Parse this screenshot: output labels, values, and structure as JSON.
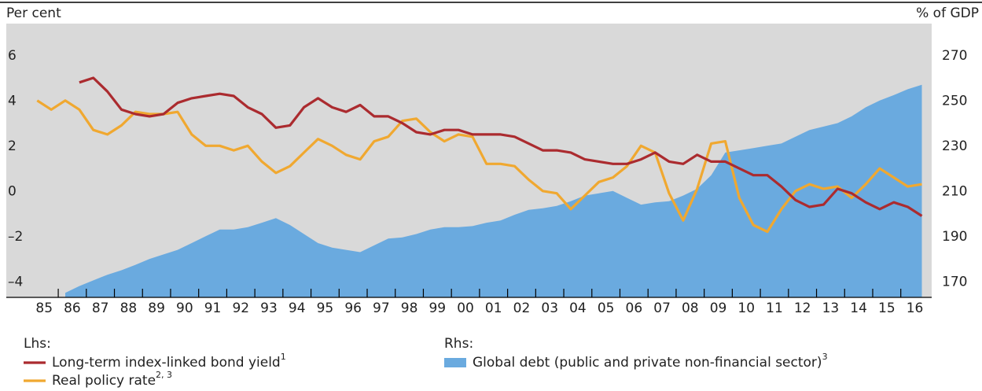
{
  "chart_data": {
    "type": "line",
    "y_label": "Per cent",
    "y2_label": "% of GDP",
    "legend": {
      "lhs_heading": "Lhs:",
      "rhs_heading": "Rhs:"
    },
    "x": [
      1985.25,
      1985.75,
      1986.25,
      1986.75,
      1987.25,
      1987.75,
      1988.25,
      1988.75,
      1989.25,
      1989.75,
      1990.25,
      1990.75,
      1991.25,
      1991.75,
      1992.25,
      1992.75,
      1993.25,
      1993.75,
      1994.25,
      1994.75,
      1995.25,
      1995.75,
      1996.25,
      1996.75,
      1997.25,
      1997.75,
      1998.25,
      1998.75,
      1999.25,
      1999.75,
      2000.25,
      2000.75,
      2001.25,
      2001.75,
      2002.25,
      2002.75,
      2003.25,
      2003.75,
      2004.25,
      2004.75,
      2005.25,
      2005.75,
      2006.25,
      2006.75,
      2007.25,
      2007.75,
      2008.25,
      2008.75,
      2009.25,
      2009.75,
      2010.25,
      2010.75,
      2011.25,
      2011.75,
      2012.25,
      2012.75,
      2013.25,
      2013.75,
      2014.25,
      2014.75,
      2015.25,
      2015.75,
      2016.25,
      2016.75
    ],
    "series": [
      {
        "name": "Long-term index-linked bond yield",
        "footnote": "1",
        "color": "#ab2b2f",
        "axis": "y",
        "type": "line",
        "values": [
          null,
          null,
          null,
          4.9,
          5.1,
          4.5,
          3.7,
          3.5,
          3.4,
          3.5,
          4.0,
          4.2,
          4.3,
          4.4,
          4.3,
          3.8,
          3.5,
          2.9,
          3.0,
          3.8,
          4.2,
          3.8,
          3.6,
          3.9,
          3.4,
          3.4,
          3.1,
          2.7,
          2.6,
          2.8,
          2.8,
          2.6,
          2.6,
          2.6,
          2.5,
          2.2,
          1.9,
          1.9,
          1.8,
          1.5,
          1.4,
          1.3,
          1.3,
          1.5,
          1.8,
          1.4,
          1.3,
          1.7,
          1.4,
          1.4,
          1.1,
          0.8,
          0.8,
          0.3,
          -0.3,
          -0.6,
          -0.5,
          0.2,
          0.0,
          -0.4,
          -0.7,
          -0.4,
          -0.6,
          -1.0
        ]
      },
      {
        "name": "Real policy rate",
        "footnote": "2, 3",
        "color": "#f0a830",
        "axis": "y",
        "type": "line",
        "values": [
          4.1,
          3.7,
          4.1,
          3.7,
          2.8,
          2.6,
          3.0,
          3.6,
          3.5,
          3.5,
          3.6,
          2.6,
          2.1,
          2.1,
          1.9,
          2.1,
          1.4,
          0.9,
          1.2,
          1.8,
          2.4,
          2.1,
          1.7,
          1.5,
          2.3,
          2.5,
          3.2,
          3.3,
          2.7,
          2.3,
          2.6,
          2.5,
          1.3,
          1.3,
          1.2,
          0.6,
          0.1,
          0.0,
          -0.7,
          -0.1,
          0.5,
          0.7,
          1.2,
          2.1,
          1.8,
          0.0,
          -1.2,
          0.2,
          2.2,
          2.3,
          -0.2,
          -1.4,
          -1.7,
          -0.7,
          0.1,
          0.4,
          0.2,
          0.3,
          -0.2,
          0.4,
          1.1,
          0.7,
          0.3,
          0.4
        ]
      },
      {
        "name": "Global debt (public and private non-financial sector)",
        "footnote": "3",
        "color": "#6aaadf",
        "axis": "y2",
        "type": "area",
        "values": [
          null,
          null,
          166,
          169,
          171.5,
          174,
          176,
          178.4,
          181,
          183,
          185,
          188,
          191,
          194,
          194,
          195,
          197,
          199,
          196,
          192,
          188,
          186,
          185,
          184,
          187,
          190,
          190.5,
          192,
          194,
          195,
          195,
          195.5,
          197,
          198,
          200.5,
          202.7,
          203.4,
          204.4,
          206.5,
          209,
          210,
          211,
          208,
          205,
          206,
          206.5,
          209,
          212,
          218,
          228,
          229,
          230,
          231,
          232,
          235,
          238,
          239.5,
          241,
          244,
          248,
          251,
          253.4,
          256,
          258
        ]
      }
    ],
    "xlim": [
      1984.15,
      2017.1
    ],
    "xticks": [
      {
        "value": 1985.5,
        "label": "85"
      },
      {
        "value": 1986.5,
        "label": "86"
      },
      {
        "value": 1987.5,
        "label": "87"
      },
      {
        "value": 1988.5,
        "label": "88"
      },
      {
        "value": 1989.5,
        "label": "89"
      },
      {
        "value": 1990.5,
        "label": "90"
      },
      {
        "value": 1991.5,
        "label": "91"
      },
      {
        "value": 1992.5,
        "label": "92"
      },
      {
        "value": 1993.5,
        "label": "93"
      },
      {
        "value": 1994.5,
        "label": "94"
      },
      {
        "value": 1995.5,
        "label": "95"
      },
      {
        "value": 1996.5,
        "label": "96"
      },
      {
        "value": 1997.5,
        "label": "97"
      },
      {
        "value": 1998.5,
        "label": "98"
      },
      {
        "value": 1999.5,
        "label": "99"
      },
      {
        "value": 2000.5,
        "label": "00"
      },
      {
        "value": 2001.5,
        "label": "01"
      },
      {
        "value": 2002.5,
        "label": "02"
      },
      {
        "value": 2003.5,
        "label": "03"
      },
      {
        "value": 2004.5,
        "label": "04"
      },
      {
        "value": 2005.5,
        "label": "05"
      },
      {
        "value": 2006.5,
        "label": "06"
      },
      {
        "value": 2007.5,
        "label": "07"
      },
      {
        "value": 2008.5,
        "label": "08"
      },
      {
        "value": 2009.5,
        "label": "09"
      },
      {
        "value": 2010.5,
        "label": "10"
      },
      {
        "value": 2011.5,
        "label": "11"
      },
      {
        "value": 2012.5,
        "label": "12"
      },
      {
        "value": 2013.5,
        "label": "13"
      },
      {
        "value": 2014.5,
        "label": "14"
      },
      {
        "value": 2015.5,
        "label": "15"
      },
      {
        "value": 2016.5,
        "label": "16"
      }
    ],
    "ylim": [
      -4.6,
      7.5
    ],
    "yticks": [
      {
        "value": -4,
        "label": "–4"
      },
      {
        "value": -2,
        "label": "–2"
      },
      0,
      2,
      4,
      6
    ],
    "y2lim": [
      164,
      285
    ],
    "y2ticks": [
      170,
      190,
      210,
      230,
      250,
      270
    ],
    "background": "#d9d9d9"
  }
}
